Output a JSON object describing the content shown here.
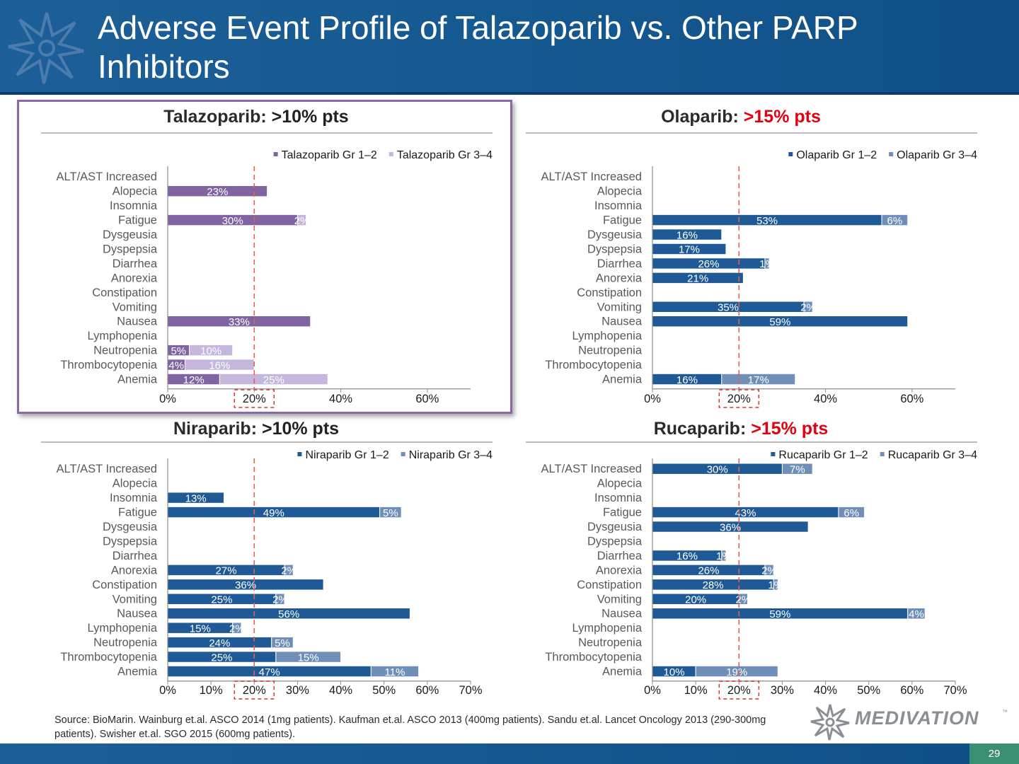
{
  "slide": {
    "title": "Adverse Event Profile of Talazoparib vs. Other PARP Inhibitors",
    "page_number": "29",
    "source": "Source:  BioMarin.  Wainburg et.al. ASCO 2014 (1mg patients).  Kaufman et.al. ASCO 2013 (400mg patients).  Sandu et.al. Lancet Oncology 2013 (290-300mg patients).  Swisher et.al. SGO 2015 (600mg patients).",
    "brand": "MEDIVATION",
    "brand_tm": "™"
  },
  "chart_data": [
    {
      "type": "bar",
      "orientation": "horizontal",
      "stacked": true,
      "title": "Talazoparib: ",
      "title_highlight": ">10% pts",
      "title_highlight_color": "#222222",
      "highlighted": true,
      "categories": [
        "ALT/AST Increased",
        "Alopecia",
        "Insomnia",
        "Fatigue",
        "Dysgeusia",
        "Dyspepsia",
        "Diarrhea",
        "Anorexia",
        "Constipation",
        "Vomiting",
        "Nausea",
        "Lymphopenia",
        "Neutropenia",
        "Thrombocytopenia",
        "Anemia"
      ],
      "series": [
        {
          "name": "Talazoparib Gr 1–2",
          "color": "#8064a2",
          "label_color": "#ffffff",
          "values": [
            null,
            23,
            null,
            30,
            null,
            null,
            null,
            null,
            null,
            null,
            33,
            null,
            5,
            4,
            12
          ]
        },
        {
          "name": "Talazoparib Gr 3–4",
          "color": "#c5b6dc",
          "label_color": "#ffffff",
          "values": [
            null,
            null,
            null,
            2,
            null,
            null,
            null,
            null,
            null,
            null,
            null,
            null,
            10,
            16,
            25
          ]
        }
      ],
      "xlim": [
        0,
        70
      ],
      "xticks": [
        0,
        20,
        40,
        60
      ],
      "xtick_labels": [
        "0%",
        "20%",
        "40%",
        "60%"
      ],
      "reference_line": 20,
      "reference_tick_label": "20%",
      "legend_position": "top-right"
    },
    {
      "type": "bar",
      "orientation": "horizontal",
      "stacked": true,
      "title": "Olaparib: ",
      "title_highlight": ">15% pts",
      "title_highlight_color": "#e3000f",
      "highlighted": false,
      "categories": [
        "ALT/AST Increased",
        "Alopecia",
        "Insomnia",
        "Fatigue",
        "Dysgeusia",
        "Dyspepsia",
        "Diarrhea",
        "Anorexia",
        "Constipation",
        "Vomiting",
        "Nausea",
        "Lymphopenia",
        "Neutropenia",
        "Thrombocytopenia",
        "Anemia"
      ],
      "series": [
        {
          "name": "Olaparib Gr 1–2",
          "color": "#1f5a96",
          "label_color": "#ffffff",
          "values": [
            null,
            null,
            null,
            53,
            16,
            17,
            26,
            21,
            null,
            35,
            59,
            null,
            null,
            null,
            16
          ]
        },
        {
          "name": "Olaparib Gr 3–4",
          "color": "#6f8fb8",
          "label_color": "#ffffff",
          "values": [
            null,
            null,
            null,
            6,
            null,
            null,
            1,
            null,
            null,
            2,
            null,
            null,
            null,
            null,
            17
          ]
        }
      ],
      "xlim": [
        0,
        70
      ],
      "xticks": [
        0,
        20,
        40,
        60
      ],
      "xtick_labels": [
        "0%",
        "20%",
        "40%",
        "60%"
      ],
      "reference_line": 20,
      "reference_tick_label": "20%",
      "legend_position": "top-right"
    },
    {
      "type": "bar",
      "orientation": "horizontal",
      "stacked": true,
      "title": "Niraparib: ",
      "title_highlight": ">10% pts",
      "title_highlight_color": "#222222",
      "highlighted": false,
      "categories": [
        "ALT/AST Increased",
        "Alopecia",
        "Insomnia",
        "Fatigue",
        "Dysgeusia",
        "Dyspepsia",
        "Diarrhea",
        "Anorexia",
        "Constipation",
        "Vomiting",
        "Nausea",
        "Lymphopenia",
        "Neutropenia",
        "Thrombocytopenia",
        "Anemia"
      ],
      "series": [
        {
          "name": "Niraparib Gr 1–2",
          "color": "#1f5a96",
          "label_color": "#ffffff",
          "values": [
            null,
            null,
            13,
            49,
            null,
            null,
            null,
            27,
            36,
            25,
            56,
            15,
            24,
            25,
            47
          ]
        },
        {
          "name": "Niraparib Gr 3–4",
          "color": "#6f8fb8",
          "label_color": "#ffffff",
          "values": [
            null,
            null,
            null,
            5,
            null,
            null,
            null,
            2,
            null,
            2,
            null,
            2,
            5,
            15,
            11
          ]
        }
      ],
      "xlim": [
        0,
        70
      ],
      "xticks": [
        0,
        10,
        20,
        30,
        40,
        50,
        60,
        70
      ],
      "xtick_labels": [
        "0%",
        "10%",
        "20%",
        "30%",
        "40%",
        "50%",
        "60%",
        "70%"
      ],
      "reference_line": 20,
      "reference_tick_label": "20%",
      "legend_position": "top-right"
    },
    {
      "type": "bar",
      "orientation": "horizontal",
      "stacked": true,
      "title": "Rucaparib: ",
      "title_highlight": ">15% pts",
      "title_highlight_color": "#e3000f",
      "highlighted": false,
      "categories": [
        "ALT/AST Increased",
        "Alopecia",
        "Insomnia",
        "Fatigue",
        "Dysgeusia",
        "Dyspepsia",
        "Diarrhea",
        "Anorexia",
        "Constipation",
        "Vomiting",
        "Nausea",
        "Lymphopenia",
        "Neutropenia",
        "Thrombocytopenia",
        "Anemia"
      ],
      "series": [
        {
          "name": "Rucaparib Gr 1–2",
          "color": "#1f5a96",
          "label_color": "#ffffff",
          "values": [
            30,
            null,
            null,
            43,
            36,
            null,
            16,
            26,
            28,
            20,
            59,
            null,
            null,
            null,
            10
          ]
        },
        {
          "name": "Rucaparib Gr 3–4",
          "color": "#6f8fb8",
          "label_color": "#ffffff",
          "values": [
            7,
            null,
            null,
            6,
            null,
            null,
            1,
            2,
            1,
            2,
            4,
            null,
            null,
            null,
            19
          ]
        }
      ],
      "xlim": [
        0,
        70
      ],
      "xticks": [
        0,
        10,
        20,
        30,
        40,
        50,
        60,
        70
      ],
      "xtick_labels": [
        "0%",
        "10%",
        "20%",
        "30%",
        "40%",
        "50%",
        "60%",
        "70%"
      ],
      "reference_line": 20,
      "reference_tick_label": "20%",
      "legend_position": "top-right"
    }
  ]
}
